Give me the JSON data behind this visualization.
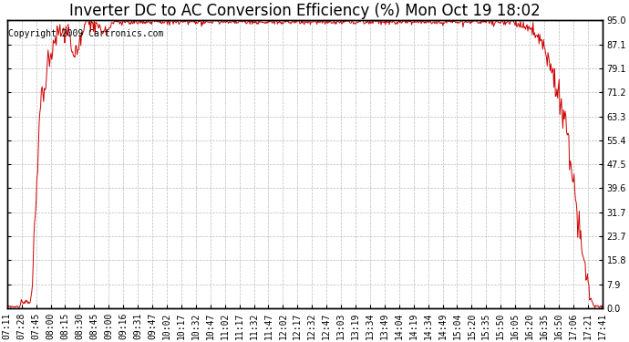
{
  "title": "Inverter DC to AC Conversion Efficiency (%) Mon Oct 19 18:02",
  "copyright_text": "Copyright 2009 Cartronics.com",
  "line_color": "#cc0000",
  "background_color": "#ffffff",
  "plot_bg_color": "#ffffff",
  "grid_color": "#bbbbbb",
  "ylim": [
    0.0,
    95.0
  ],
  "yticks": [
    0.0,
    7.9,
    15.8,
    23.7,
    31.7,
    39.6,
    47.5,
    55.4,
    63.3,
    71.2,
    79.1,
    87.1,
    95.0
  ],
  "xtick_labels": [
    "07:11",
    "07:28",
    "07:45",
    "08:00",
    "08:15",
    "08:30",
    "08:45",
    "09:00",
    "09:16",
    "09:31",
    "09:47",
    "10:02",
    "10:17",
    "10:32",
    "10:47",
    "11:02",
    "11:17",
    "11:32",
    "11:47",
    "12:02",
    "12:17",
    "12:32",
    "12:47",
    "13:03",
    "13:19",
    "13:34",
    "13:49",
    "14:04",
    "14:19",
    "14:34",
    "14:49",
    "15:04",
    "15:20",
    "15:35",
    "15:50",
    "16:05",
    "16:20",
    "16:35",
    "16:50",
    "17:06",
    "17:21",
    "17:41"
  ],
  "title_fontsize": 12,
  "tick_fontsize": 7,
  "copyright_fontsize": 7
}
